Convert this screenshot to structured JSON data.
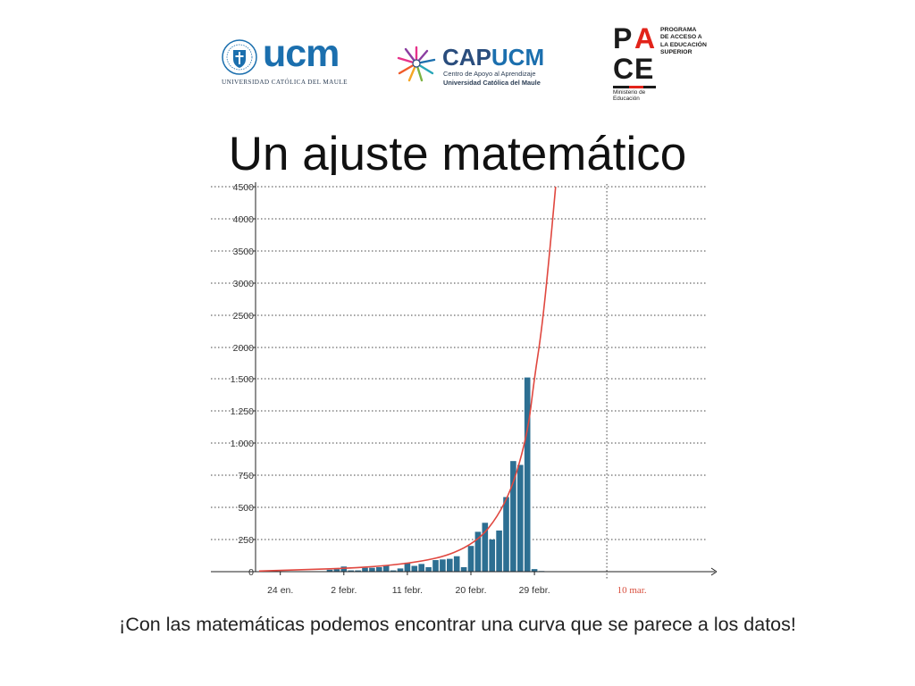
{
  "logos": {
    "ucm": {
      "wordmark": "ucm",
      "subtitle": "UNIVERSIDAD CATÓLICA DEL MAULE"
    },
    "capucm": {
      "cap": "CAP",
      "ucm": "UCM",
      "line1": "Centro de Apoyo al Aprendizaje",
      "line2": "Universidad Católica del Maule"
    },
    "pace": {
      "letters": [
        "P",
        "A",
        "C",
        "E"
      ],
      "side_text": [
        "PROGRAMA",
        "DE ACCESO A",
        "LA EDUCACIÓN",
        "SUPERIOR"
      ],
      "ministry": [
        "Ministerio de",
        "Educación"
      ]
    }
  },
  "title": "Un ajuste matemático",
  "caption": "¡Con las matemáticas podemos encontrar una curva que se parece a los datos!",
  "colors": {
    "bar": "#2d6f92",
    "curve": "#e0473f",
    "grid": "#444444",
    "axis": "#222222",
    "vline_label": "#d9503f",
    "ucm_blue": "#1b6fae",
    "pace_red": "#e2231a"
  },
  "chart_data": {
    "type": "bar",
    "xlabel": "",
    "ylabel": "",
    "grid": true,
    "y_ticks": [
      {
        "value": 0,
        "label": "0"
      },
      {
        "value": 250,
        "label": "250"
      },
      {
        "value": 500,
        "label": "500"
      },
      {
        "value": 750,
        "label": "750"
      },
      {
        "value": 1000,
        "label": "1.000"
      },
      {
        "value": 1250,
        "label": "1.250"
      },
      {
        "value": 1500,
        "label": "1.500"
      },
      {
        "value": 2000,
        "label": "2000"
      },
      {
        "value": 2500,
        "label": "2500"
      },
      {
        "value": 3000,
        "label": "3000"
      },
      {
        "value": 3500,
        "label": "3500"
      },
      {
        "value": 4000,
        "label": "4000"
      },
      {
        "value": 4500,
        "label": "4500"
      }
    ],
    "x_ticks": [
      {
        "day": 3,
        "label": "24 en."
      },
      {
        "day": 12,
        "label": "2 febr."
      },
      {
        "day": 21,
        "label": "11 febr."
      },
      {
        "day": 30,
        "label": "20 febr."
      },
      {
        "day": 39,
        "label": "29 febr."
      }
    ],
    "vertical_marker": {
      "day": 49,
      "label": "10 mar."
    },
    "series": [
      {
        "days": [
          10,
          11,
          12,
          13,
          14,
          15,
          16,
          17,
          18,
          19,
          20,
          21,
          22,
          23,
          24,
          25,
          26,
          27,
          28,
          29,
          30,
          31,
          32,
          33,
          34,
          35,
          36,
          37,
          38,
          39,
          40
        ],
        "values": [
          15,
          20,
          40,
          10,
          10,
          30,
          30,
          35,
          50,
          10,
          25,
          70,
          45,
          60,
          35,
          90,
          95,
          100,
          120,
          35,
          200,
          310,
          380,
          250,
          320,
          580,
          860,
          830,
          1520,
          20,
          5
        ]
      }
    ],
    "curve": {
      "label": "",
      "points": [
        {
          "day": 0,
          "value": 5
        },
        {
          "day": 20,
          "value": 40
        },
        {
          "day": 30,
          "value": 170
        },
        {
          "day": 35,
          "value": 510
        },
        {
          "day": 38,
          "value": 1050
        },
        {
          "day": 39,
          "value": 1520
        },
        {
          "day": 40,
          "value": 2250
        },
        {
          "day": 41,
          "value": 3300
        },
        {
          "day": 42,
          "value": 4500
        }
      ]
    }
  }
}
